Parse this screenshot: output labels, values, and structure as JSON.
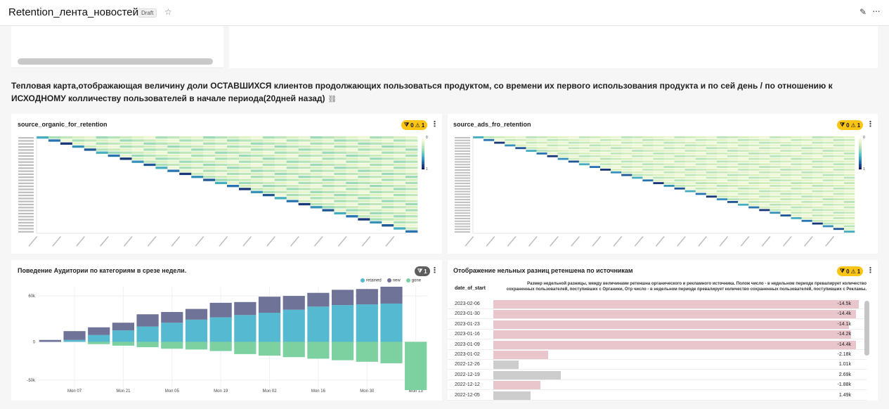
{
  "header": {
    "title": "Retention_лента_новостей",
    "status": "Draft",
    "star_icon": "star-icon",
    "edit_icon": "pencil-icon",
    "more_icon": "more-icon"
  },
  "description": {
    "text": "Тепловая карта,отображающая величину доли ОСТАВШИХСЯ клиентов продолжающих пользоваться продуктом, со времени их первого использования продукта и по сей день / по отношению к ИСХОДНОМУ колличеству пользователей в начале периода(20дней назад)",
    "link_icon": "link-icon"
  },
  "panels": {
    "organic": {
      "title": "source_organic_for_retention",
      "badge_filters": "0",
      "badge_alerts": "1"
    },
    "ads": {
      "title": "source_ads_fro_retention",
      "badge_filters": "0",
      "badge_alerts": "1"
    },
    "audience": {
      "title": "Поведение Аудитории по категориям в срезе недели.",
      "badge_count": "1",
      "legend": [
        "retained",
        "new",
        "gone"
      ]
    },
    "diff": {
      "title": "Отображение нельных разниц ретеншена по источникам",
      "badge_filters": "0",
      "badge_alerts": "1",
      "col_date": "date_of_start",
      "col_desc": "Размер недельной разницы, между величинами ретеншна органического и рекламного источника. Полож число - в недельном периоде превалирует количество сохраненных пользователей, поступивших с Органики, Отр число - в недельном периоде превалирует количество сохраненных пользователей, поступивших с Рекламы.",
      "rows": [
        {
          "date": "2023-02-06",
          "value": "-14.5k"
        },
        {
          "date": "2023-01-30",
          "value": "-14.4k"
        },
        {
          "date": "2023-01-23",
          "value": "-14.1k"
        },
        {
          "date": "2023-01-16",
          "value": "-14.2k"
        },
        {
          "date": "2023-01-09",
          "value": "-14.4k"
        },
        {
          "date": "2023-01-02",
          "value": "-2.18k"
        },
        {
          "date": "2022-12-26",
          "value": "1.01k"
        },
        {
          "date": "2022-12-19",
          "value": "2.69k"
        },
        {
          "date": "2022-12-12",
          "value": "-1.88k"
        },
        {
          "date": "2022-12-05",
          "value": "1.49k"
        }
      ]
    }
  },
  "chart_data": [
    {
      "type": "heatmap",
      "title": "source_organic_for_retention",
      "colorscale_range": [
        "0",
        "1"
      ]
    },
    {
      "type": "heatmap",
      "title": "source_ads_fro_retention",
      "colorscale_range": [
        "0",
        "1"
      ]
    },
    {
      "type": "bar",
      "title": "Поведение Аудитории по категориям в срезе недели.",
      "x_tick_labels": [
        "Mon 07",
        "Mon 21",
        "Mon 05",
        "Mon 19",
        "Mon 02",
        "Mon 16",
        "Mon 30",
        "Mon 13"
      ],
      "y_tick_labels": [
        "60k",
        "0",
        "-50k"
      ],
      "ylim": [
        -62000,
        72000
      ],
      "series": [
        {
          "name": "retained",
          "color": "#55b9d1",
          "values": [
            0,
            2500,
            9000,
            15000,
            20000,
            25000,
            29000,
            32000,
            35000,
            38000,
            42000,
            46000,
            48000,
            49000,
            50000,
            0
          ]
        },
        {
          "name": "new",
          "color": "#6e7397",
          "values": [
            2500,
            11500,
            10000,
            10000,
            16000,
            14000,
            14000,
            19000,
            17000,
            21000,
            18000,
            18000,
            20000,
            20000,
            22000,
            0
          ]
        },
        {
          "name": "gone",
          "color": "#7dd0a0",
          "values": [
            0,
            0,
            -3000,
            -5000,
            -7000,
            -9000,
            -10000,
            -12000,
            -16000,
            -18000,
            -20000,
            -22000,
            -24000,
            -26000,
            -28000,
            -63000
          ]
        }
      ]
    }
  ]
}
